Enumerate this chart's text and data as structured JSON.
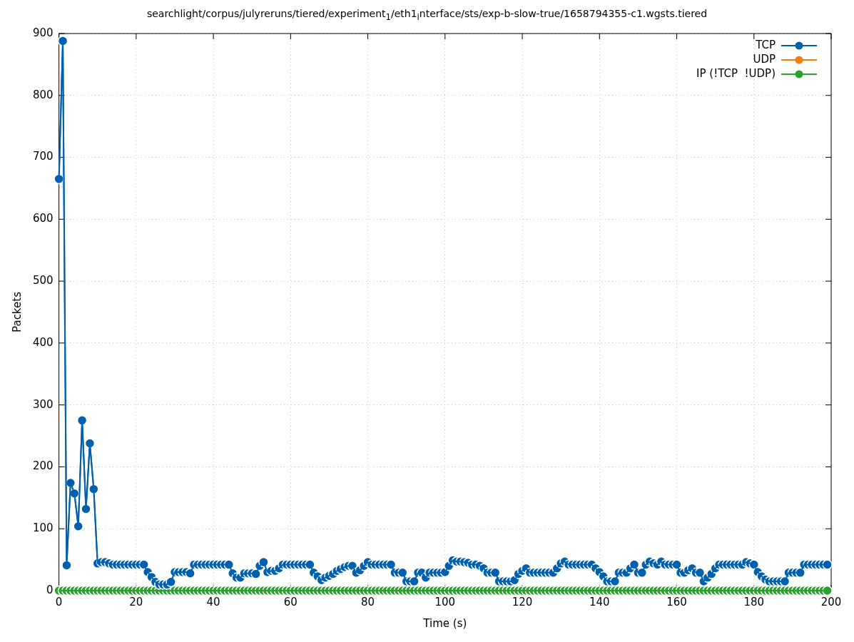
{
  "chart_data": {
    "type": "line",
    "title": "searchlight/corpus/julyreruns/tiered/experiment$_{1}$/eth1$_{i}$nterface/sts/exp-b-slow-true/1658794355-c1.wgsts.tiered",
    "xlabel": "Time (s)",
    "ylabel": "Packets",
    "x": [
      0,
      1,
      2,
      3,
      4,
      5,
      6,
      7,
      8,
      9,
      10,
      11,
      12,
      13,
      14,
      15,
      16,
      17,
      18,
      19,
      20,
      21,
      22,
      23,
      24,
      25,
      26,
      27,
      28,
      29,
      30,
      31,
      32,
      33,
      34,
      35,
      36,
      37,
      38,
      39,
      40,
      41,
      42,
      43,
      44,
      45,
      46,
      47,
      48,
      49,
      50,
      51,
      52,
      53,
      54,
      55,
      56,
      57,
      58,
      59,
      60,
      61,
      62,
      63,
      64,
      65,
      66,
      67,
      68,
      69,
      70,
      71,
      72,
      73,
      74,
      75,
      76,
      77,
      78,
      79,
      80,
      81,
      82,
      83,
      84,
      85,
      86,
      87,
      88,
      89,
      90,
      91,
      92,
      93,
      94,
      95,
      96,
      97,
      98,
      99,
      100,
      101,
      102,
      103,
      104,
      105,
      106,
      107,
      108,
      109,
      110,
      111,
      112,
      113,
      114,
      115,
      116,
      117,
      118,
      119,
      120,
      121,
      122,
      123,
      124,
      125,
      126,
      127,
      128,
      129,
      130,
      131,
      132,
      133,
      134,
      135,
      136,
      137,
      138,
      139,
      140,
      141,
      142,
      143,
      144,
      145,
      146,
      147,
      148,
      149,
      150,
      151,
      152,
      153,
      154,
      155,
      156,
      157,
      158,
      159,
      160,
      161,
      162,
      163,
      164,
      165,
      166,
      167,
      168,
      169,
      170,
      171,
      172,
      173,
      174,
      175,
      176,
      177,
      178,
      179,
      180,
      181,
      182,
      183,
      184,
      185,
      186,
      187,
      188,
      189,
      190,
      191,
      192,
      193,
      194,
      195,
      196,
      197,
      198,
      199
    ],
    "series": [
      {
        "name": "TCP",
        "color": "#0060ad",
        "values": [
          665,
          888,
          41,
          174,
          157,
          104,
          275,
          132,
          238,
          164,
          44,
          46,
          46,
          44,
          42,
          42,
          42,
          42,
          42,
          42,
          42,
          42,
          42,
          30,
          22,
          14,
          10,
          10,
          10,
          14,
          30,
          30,
          30,
          30,
          28,
          42,
          42,
          42,
          42,
          42,
          42,
          42,
          42,
          42,
          42,
          28,
          21,
          21,
          28,
          28,
          28,
          27,
          40,
          46,
          30,
          32,
          32,
          36,
          42,
          42,
          42,
          42,
          42,
          42,
          42,
          42,
          29,
          23,
          17,
          21,
          24,
          27,
          32,
          35,
          38,
          40,
          40,
          29,
          33,
          40,
          46,
          42,
          42,
          42,
          42,
          42,
          42,
          29,
          29,
          29,
          15,
          15,
          15,
          29,
          29,
          21,
          29,
          29,
          29,
          29,
          30,
          40,
          49,
          47,
          47,
          46,
          45,
          42,
          42,
          40,
          36,
          29,
          29,
          29,
          15,
          15,
          15,
          15,
          17,
          27,
          32,
          36,
          29,
          29,
          29,
          29,
          29,
          29,
          29,
          36,
          44,
          47,
          42,
          42,
          42,
          42,
          42,
          42,
          42,
          36,
          30,
          23,
          15,
          15,
          15,
          29,
          29,
          29,
          36,
          42,
          29,
          29,
          42,
          47,
          44,
          42,
          47,
          42,
          42,
          42,
          42,
          29,
          29,
          33,
          36,
          29,
          29,
          15,
          21,
          27,
          36,
          42,
          42,
          42,
          42,
          42,
          42,
          42,
          46,
          44,
          42,
          30,
          23,
          18,
          15,
          15,
          15,
          15,
          15,
          29,
          29,
          29,
          29,
          42,
          42,
          42,
          42,
          42,
          42,
          42
        ]
      },
      {
        "name": "UDP",
        "color": "#f07c12",
        "values": [
          null,
          null,
          null,
          null,
          null,
          null,
          null,
          null,
          null,
          null,
          null,
          null,
          null,
          null,
          null,
          null,
          null,
          null,
          null,
          null,
          null,
          null,
          null,
          null,
          null,
          null,
          null,
          null,
          null,
          null,
          null,
          null,
          null,
          null,
          null,
          null,
          null,
          null,
          null,
          null,
          null,
          null,
          null,
          null,
          null,
          null,
          null,
          null,
          null,
          null,
          null,
          null,
          null,
          null,
          null,
          null,
          null,
          null,
          null,
          null,
          null,
          null,
          null,
          null,
          null,
          null,
          null,
          null,
          null,
          null,
          null,
          null,
          null,
          null,
          null,
          null,
          null,
          null,
          null,
          null,
          null,
          null,
          null,
          null,
          null,
          null,
          null,
          null,
          null,
          null,
          null,
          null,
          null,
          null,
          null,
          null,
          null,
          null,
          null,
          null,
          null,
          null,
          null,
          null,
          null,
          null,
          null,
          null,
          null,
          null,
          null,
          null,
          null,
          null,
          null,
          null,
          null,
          null,
          null,
          null,
          null,
          null,
          null,
          null,
          null,
          null,
          null,
          null,
          null,
          null,
          null,
          null,
          null,
          null,
          null,
          null,
          null,
          null,
          null,
          null,
          null,
          null,
          null,
          null,
          null,
          null,
          null,
          null,
          null,
          null,
          null,
          null,
          null,
          null,
          null,
          null,
          null,
          null,
          null,
          null,
          null,
          null,
          null,
          null,
          null,
          null,
          null,
          null,
          null,
          null,
          null,
          null,
          null,
          null,
          null,
          null,
          null,
          null,
          null,
          null,
          null,
          null,
          null,
          null,
          null,
          null,
          null,
          null,
          null,
          null,
          null,
          null,
          null,
          null,
          null,
          null,
          null,
          null,
          null,
          null
        ]
      },
      {
        "name": "IP (!TCP  !UDP)",
        "color": "#2ca02c",
        "values": [
          0,
          0,
          0,
          0,
          0,
          0,
          0,
          0,
          0,
          0,
          0,
          0,
          0,
          0,
          0,
          0,
          0,
          0,
          0,
          0,
          0,
          0,
          0,
          0,
          0,
          0,
          0,
          0,
          0,
          0,
          0,
          0,
          0,
          0,
          0,
          0,
          0,
          0,
          0,
          0,
          0,
          0,
          0,
          0,
          0,
          0,
          0,
          0,
          0,
          0,
          0,
          0,
          0,
          0,
          0,
          0,
          0,
          0,
          0,
          0,
          0,
          0,
          0,
          0,
          0,
          0,
          0,
          0,
          0,
          0,
          0,
          0,
          0,
          0,
          0,
          0,
          0,
          0,
          0,
          0,
          0,
          0,
          0,
          0,
          0,
          0,
          0,
          0,
          0,
          0,
          0,
          0,
          0,
          0,
          0,
          0,
          0,
          0,
          0,
          0,
          0,
          0,
          0,
          0,
          0,
          0,
          0,
          0,
          0,
          0,
          0,
          0,
          0,
          0,
          0,
          0,
          0,
          0,
          0,
          0,
          0,
          0,
          0,
          0,
          0,
          0,
          0,
          0,
          0,
          0,
          0,
          0,
          0,
          0,
          0,
          0,
          0,
          0,
          0,
          0,
          0,
          0,
          0,
          0,
          0,
          0,
          0,
          0,
          0,
          0,
          0,
          0,
          0,
          0,
          0,
          0,
          0,
          0,
          0,
          0,
          0,
          0,
          0,
          0,
          0,
          0,
          0,
          0,
          0,
          0,
          0,
          0,
          0,
          0,
          0,
          0,
          0,
          0,
          0,
          0,
          0,
          0,
          0,
          0,
          0,
          0,
          0,
          0,
          0,
          0,
          0,
          0,
          0,
          0,
          0,
          0,
          0,
          0,
          0,
          0
        ]
      }
    ],
    "xlim": [
      0,
      200
    ],
    "xticks": [
      0,
      20,
      40,
      60,
      80,
      100,
      120,
      140,
      160,
      180,
      200
    ],
    "ylim": [
      0,
      900
    ],
    "yticks": [
      0,
      100,
      200,
      300,
      400,
      500,
      600,
      700,
      800,
      900
    ],
    "grid": true,
    "legend": "top right",
    "marker": "circle",
    "line_style": "solid"
  }
}
